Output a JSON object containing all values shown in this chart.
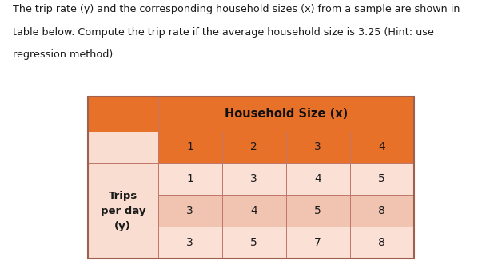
{
  "title_line1": "The trip rate (y) and the corresponding household sizes (x) from a sample are shown in",
  "title_line2": "table below. Compute the trip rate if the average household size is 3.25 (Hint: use",
  "title_line3": "regression method)",
  "header_main": "Household Size (x)",
  "header_sub": [
    "1",
    "2",
    "3",
    "4"
  ],
  "row_label_lines": [
    "Trips",
    "per day",
    "(y)"
  ],
  "data_rows": [
    [
      "1",
      "3",
      "4",
      "5"
    ],
    [
      "3",
      "4",
      "5",
      "8"
    ],
    [
      "3",
      "5",
      "7",
      "8"
    ]
  ],
  "color_orange": "#E8712A",
  "color_left_panel": "#F9DDD0",
  "color_data_light": "#FAE0D5",
  "color_data_medium": "#F0C4B0",
  "color_data_light2": "#FAE0D5",
  "color_border": "#C0776A",
  "color_text_dark": "#1A1A1A",
  "bg_color": "#FFFFFF",
  "fig_width": 6.28,
  "fig_height": 3.27
}
